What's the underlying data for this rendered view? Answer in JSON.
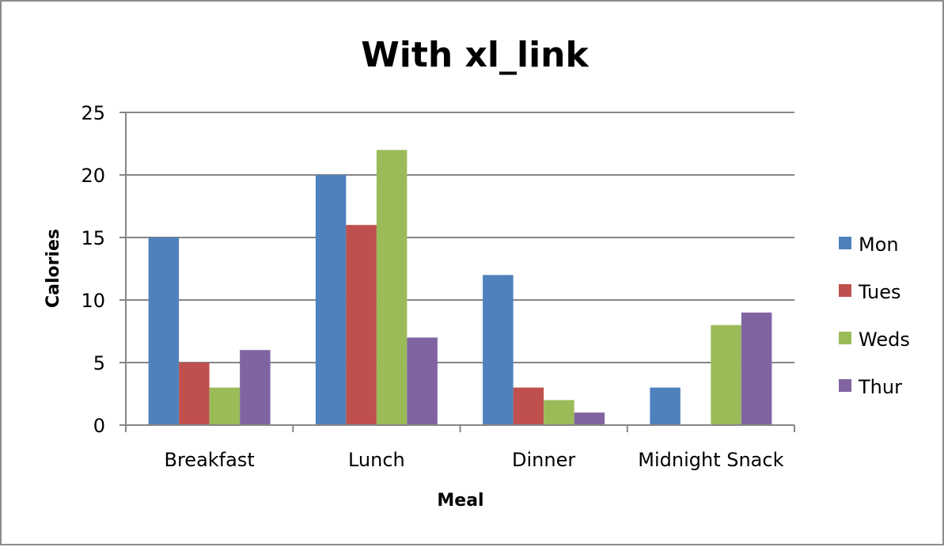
{
  "chart_data": {
    "type": "bar",
    "title": "With xl_link",
    "xlabel": "Meal",
    "ylabel": "Calories",
    "categories": [
      "Breakfast",
      "Lunch",
      "Dinner",
      "Midnight Snack"
    ],
    "series": [
      {
        "name": "Mon",
        "color": "#4f81bd",
        "values": [
          15,
          20,
          12,
          3
        ]
      },
      {
        "name": "Tues",
        "color": "#c0504d",
        "values": [
          5,
          16,
          3,
          0
        ]
      },
      {
        "name": "Weds",
        "color": "#9bbb59",
        "values": [
          3,
          22,
          2,
          8
        ]
      },
      {
        "name": "Thur",
        "color": "#8064a2",
        "values": [
          6,
          7,
          1,
          9
        ]
      }
    ],
    "ylim": [
      0,
      25
    ],
    "yticks": [
      0,
      5,
      10,
      15,
      20,
      25
    ],
    "grid": true,
    "legend_position": "right"
  }
}
